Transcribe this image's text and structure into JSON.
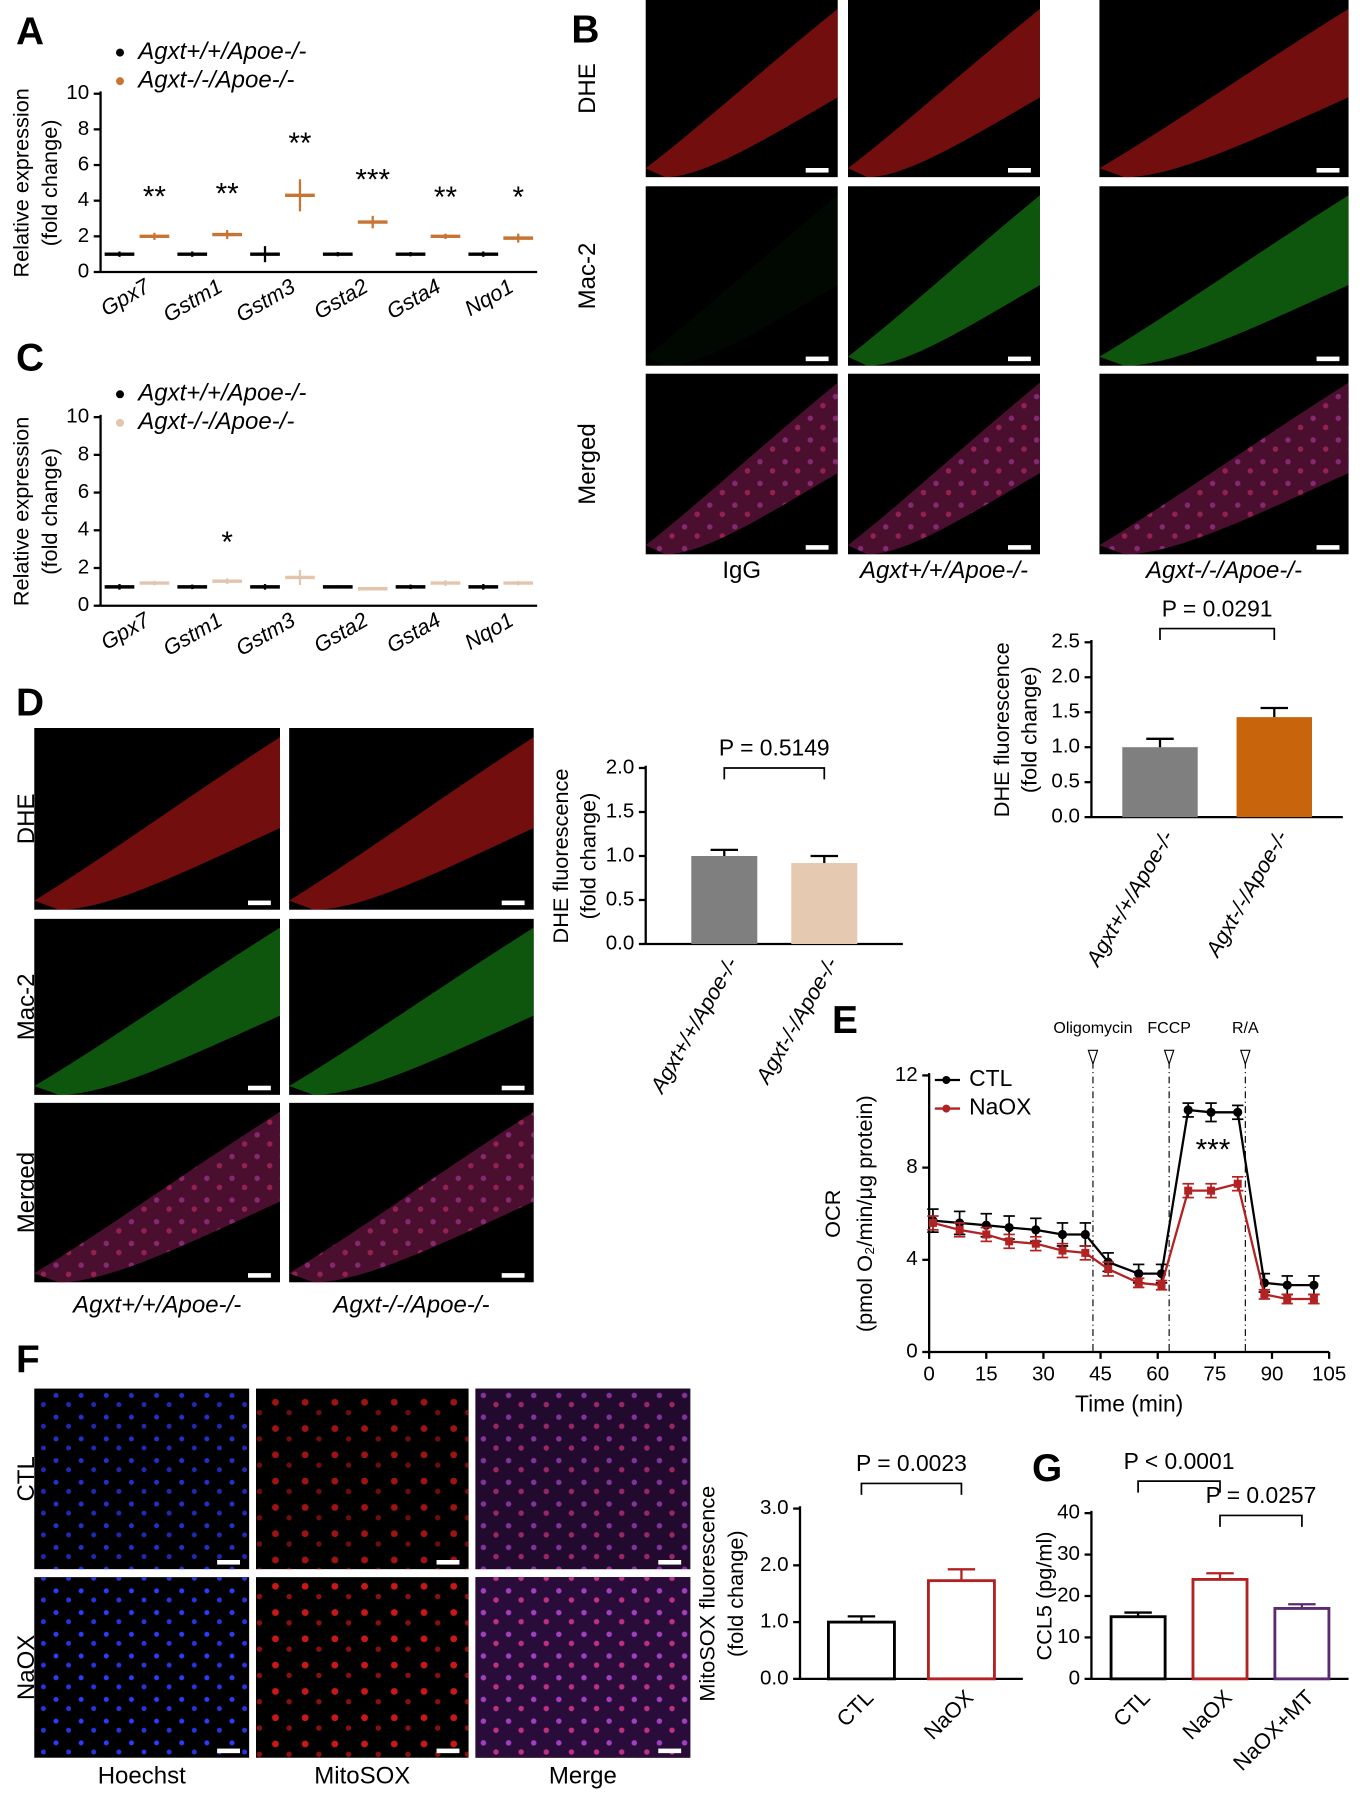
{
  "panel_labels": [
    "A",
    "B",
    "C",
    "D",
    "E",
    "F",
    "G"
  ],
  "image_grids": [
    {
      "rows": [
        "DHE",
        "Mac-2",
        "Merged"
      ],
      "columns": [
        "IgG",
        "Agxt+/+/Apoe-/-",
        "Agxt-/-/Apoe-/-"
      ]
    },
    {
      "rows": [
        "DHE",
        "Mac-2",
        "Merged"
      ],
      "columns": [
        "Agxt+/+/Apoe-/-",
        "Agxt-/-/Apoe-/-"
      ]
    },
    {
      "rows": [
        "CTL",
        "NaOX"
      ],
      "columns": [
        "Hoechst",
        "MitoSOX",
        "Merge"
      ]
    }
  ],
  "chart_data": [
    {
      "type": "dotplot",
      "ylabel": [
        "Relative expression",
        "(fold change)"
      ],
      "categories": [
        "Gpx7",
        "Gstm1",
        "Gstm3",
        "Gsta2",
        "Gsta4",
        "Nqo1"
      ],
      "series": [
        {
          "name": "Agxt+/+/Apoe-/-",
          "color": "#000000",
          "values": [
            1.0,
            1.0,
            1.0,
            1.0,
            1.0,
            1.0
          ],
          "errors": [
            0.15,
            0.15,
            0.45,
            0.12,
            0.12,
            0.15
          ]
        },
        {
          "name": "Agxt-/-/Apoe-/-",
          "color": "#c87533",
          "values": [
            2.0,
            2.1,
            4.3,
            2.8,
            2.0,
            1.9
          ],
          "errors": [
            0.2,
            0.25,
            0.9,
            0.35,
            0.15,
            0.25
          ]
        }
      ],
      "annotations": [
        "**",
        "**",
        "**",
        "***",
        "**",
        "*"
      ],
      "ylim": [
        0,
        10
      ],
      "yticks": [
        0,
        2,
        4,
        6,
        8,
        10
      ]
    },
    {
      "type": "dotplot",
      "ylabel": [
        "Relative expression",
        "(fold change)"
      ],
      "categories": [
        "Gpx7",
        "Gstm1",
        "Gstm3",
        "Gsta2",
        "Gsta4",
        "Nqo1"
      ],
      "series": [
        {
          "name": "Agxt+/+/Apoe-/-",
          "color": "#000000",
          "values": [
            1.0,
            1.0,
            1.0,
            1.0,
            1.0,
            1.0
          ],
          "errors": [
            0.15,
            0.12,
            0.15,
            0.08,
            0.12,
            0.15
          ]
        },
        {
          "name": "Agxt-/-/Apoe-/-",
          "color": "#e3c5ae",
          "values": [
            1.2,
            1.3,
            1.5,
            0.9,
            1.2,
            1.2
          ],
          "errors": [
            0.12,
            0.15,
            0.4,
            0.08,
            0.15,
            0.12
          ]
        }
      ],
      "annotations": [
        null,
        "*",
        null,
        null,
        null,
        null
      ],
      "ylim": [
        0,
        10
      ],
      "yticks": [
        0,
        2,
        4,
        6,
        8,
        10
      ]
    },
    {
      "type": "bar",
      "ylabel": [
        "DHE fluorescence",
        "(fold change)"
      ],
      "categories": [
        "Agxt+/+/Apoe-/-",
        "Agxt-/-/Apoe-/-"
      ],
      "values": [
        1.0,
        1.43
      ],
      "errors": [
        0.12,
        0.13
      ],
      "colors": [
        "#7f7f7f",
        "#c8650c"
      ],
      "outline": false,
      "annotations": [
        "P = 0.0291"
      ],
      "ylim": [
        0,
        2.5
      ],
      "yticks": [
        {
          "value": 0,
          "label": "0.0"
        },
        0.5,
        {
          "value": 1,
          "label": "1.0"
        },
        1.5,
        {
          "value": 2,
          "label": "2.0"
        },
        2.5
      ]
    },
    {
      "type": "bar",
      "ylabel": [
        "DHE fluorescence",
        "(fold change)"
      ],
      "categories": [
        "Agxt+/+/Apoe-/-",
        "Agxt-/-/Apoe-/-"
      ],
      "values": [
        1.0,
        0.92
      ],
      "errors": [
        0.07,
        0.08
      ],
      "colors": [
        "#7f7f7f",
        "#e6c9b1"
      ],
      "outline": false,
      "annotations": [
        "P = 0.5149"
      ],
      "ylim": [
        0,
        2
      ],
      "yticks": [
        {
          "value": 0,
          "label": "0.0"
        },
        0.5,
        {
          "value": 1,
          "label": "1.0"
        },
        1.5,
        {
          "value": 2,
          "label": "2.0"
        }
      ]
    },
    {
      "type": "line",
      "ylabel": [
        "OCR",
        "(pmol O₂/min/μg protein)"
      ],
      "xlabel": "Time (min)",
      "x": [
        1,
        8,
        15,
        21,
        28,
        35,
        41,
        47,
        55,
        61,
        68,
        74,
        81,
        88,
        94,
        101
      ],
      "series": [
        {
          "name": "CTL",
          "color": "#000000",
          "values": [
            5.7,
            5.6,
            5.5,
            5.4,
            5.3,
            5.1,
            5.1,
            3.9,
            3.4,
            3.4,
            10.5,
            10.4,
            10.4,
            3.0,
            2.9,
            2.9
          ],
          "errors": [
            0.5,
            0.5,
            0.5,
            0.5,
            0.5,
            0.5,
            0.5,
            0.4,
            0.4,
            0.4,
            0.3,
            0.4,
            0.3,
            0.4,
            0.4,
            0.4
          ]
        },
        {
          "name": "NaOX",
          "color": "#b22222",
          "values": [
            5.6,
            5.3,
            5.1,
            4.8,
            4.7,
            4.4,
            4.3,
            3.6,
            3.0,
            2.9,
            7.0,
            7.0,
            7.3,
            2.5,
            2.3,
            2.3
          ],
          "errors": [
            0.3,
            0.3,
            0.3,
            0.3,
            0.3,
            0.3,
            0.3,
            0.3,
            0.2,
            0.2,
            0.3,
            0.3,
            0.3,
            0.2,
            0.2,
            0.2
          ]
        }
      ],
      "events": [
        {
          "x": 43,
          "label": "Oligomycin"
        },
        {
          "x": 63,
          "label": "FCCP"
        },
        {
          "x": 83,
          "label": "R/A"
        }
      ],
      "annotation": "***",
      "xlim": [
        0,
        105
      ],
      "xticks": [
        0,
        15,
        30,
        45,
        60,
        75,
        90,
        105
      ],
      "ylim": [
        0,
        12
      ],
      "yticks": [
        0,
        4,
        8,
        12
      ]
    },
    {
      "type": "bar",
      "ylabel": [
        "MitoSOX fluorescence",
        "(fold change)"
      ],
      "categories": [
        "CTL",
        "NaOX"
      ],
      "values": [
        1.0,
        1.73
      ],
      "errors": [
        0.1,
        0.2
      ],
      "colors": [
        "#000000",
        "#b22222"
      ],
      "outline": true,
      "annotations": [
        "P = 0.0023"
      ],
      "ylim": [
        0,
        3
      ],
      "yticks": [
        {
          "value": 0,
          "label": "0.0"
        },
        {
          "value": 1,
          "label": "1.0"
        },
        {
          "value": 2,
          "label": "2.0"
        },
        {
          "value": 3,
          "label": "3.0"
        }
      ]
    },
    {
      "type": "bar",
      "ylabel": [
        "CCL5 (pg/ml)"
      ],
      "categories": [
        "CTL",
        "NaOX",
        "NaOX+MT"
      ],
      "values": [
        15,
        24,
        17
      ],
      "errors": [
        1,
        1.5,
        1
      ],
      "colors": [
        "#000000",
        "#b22222",
        "#5c2a6e"
      ],
      "outline": true,
      "annotations": [
        "P < 0.0001",
        "P = 0.0257"
      ],
      "ylim": [
        0,
        40
      ],
      "yticks": [
        0,
        10,
        20,
        30,
        40
      ]
    }
  ]
}
